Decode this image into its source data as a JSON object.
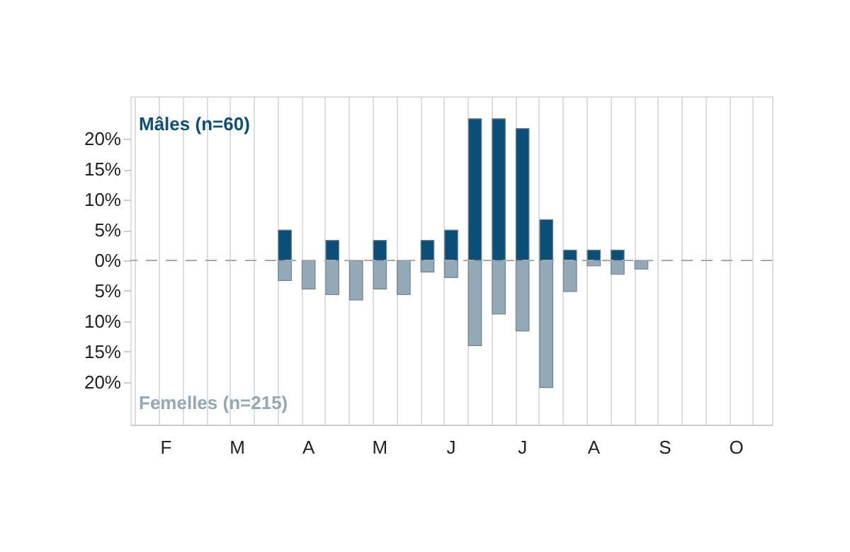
{
  "chart_data": {
    "type": "bar",
    "categories": [
      null,
      "F",
      null,
      null,
      "M",
      null,
      null,
      "A",
      null,
      null,
      "M",
      null,
      null,
      "J",
      null,
      null,
      "J",
      null,
      null,
      "A",
      null,
      null,
      "S",
      null,
      null,
      "O",
      null
    ],
    "series": [
      {
        "name": "Mâles (n=60)",
        "color": "#0b4f78",
        "values": [
          null,
          null,
          null,
          null,
          null,
          null,
          5.0,
          null,
          3.3,
          null,
          3.3,
          null,
          3.3,
          5.0,
          23.3,
          23.3,
          21.7,
          6.7,
          1.7,
          1.7,
          1.7,
          null,
          null,
          null,
          null,
          null,
          null
        ]
      },
      {
        "name": "Femelles (n=215)",
        "color": "#94a9b8",
        "values": [
          null,
          null,
          null,
          null,
          null,
          null,
          -3.3,
          -4.7,
          -5.6,
          -6.5,
          -4.7,
          -5.6,
          -1.9,
          -2.8,
          -14.0,
          -8.8,
          -11.6,
          -20.9,
          -5.1,
          -0.9,
          -2.3,
          -1.4,
          null,
          null,
          null,
          null,
          null
        ]
      }
    ],
    "ylim": [
      -27,
      27
    ],
    "yticks": [
      {
        "value": -20,
        "label": "20%"
      },
      {
        "value": -15,
        "label": "15%"
      },
      {
        "value": -10,
        "label": "10%"
      },
      {
        "value": -5,
        "label": "5%"
      },
      {
        "value": 0,
        "label": "0%"
      },
      {
        "value": 5,
        "label": "5%"
      },
      {
        "value": 10,
        "label": "10%"
      },
      {
        "value": 15,
        "label": "15%"
      },
      {
        "value": 20,
        "label": "20%"
      }
    ],
    "grid": "x",
    "legend": false,
    "ref_lines": [
      {
        "axis": "y",
        "value": 0,
        "color": "#aaaaaa",
        "line_style": "dashed"
      }
    ]
  }
}
